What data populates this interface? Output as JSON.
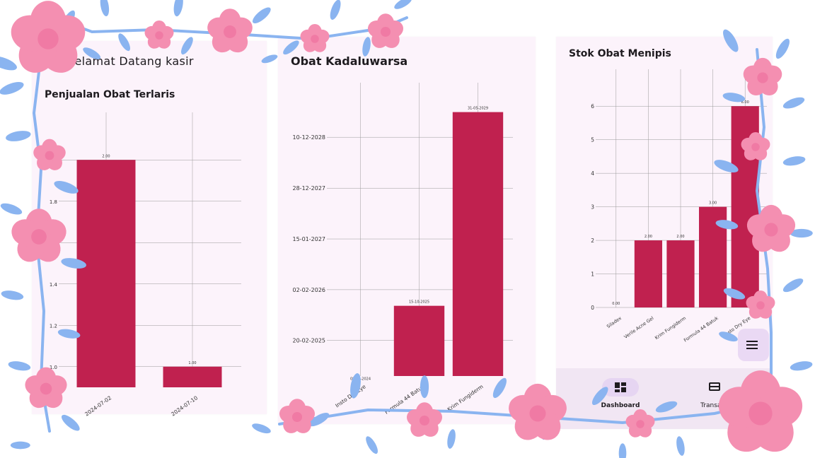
{
  "welcome_text": "Selamat Datang kasir",
  "charts_text": {
    "sales": {
      "title": "Penjualan Obat Terlaris",
      "y_ticks": [
        "1.0",
        "1.2",
        "1.4",
        "1.6",
        "1.8",
        "2.0"
      ],
      "categories": [
        "2024-07-02",
        "2024-07-10"
      ],
      "data_labels": [
        "2.00",
        "1.00"
      ]
    },
    "expiry": {
      "title": "Obat Kadaluwarsa",
      "y_ticks": [
        "20-02-2025",
        "02-02-2026",
        "15-01-2027",
        "28-12-2027",
        "10-12-2028"
      ],
      "categories": [
        "Insto Dry Eye",
        "Formula 44 Batuk",
        "Krim Fungiderm"
      ],
      "data_labels": [
        "08-05-2024",
        "15-10-2025",
        "31-05-2029"
      ]
    },
    "stock": {
      "title": "Stok Obat Menipis",
      "y_ticks": [
        "0",
        "1",
        "2",
        "3",
        "4",
        "5",
        "6"
      ],
      "categories": [
        "Siladex",
        "Verile Acne Gel",
        "Krim Fungiderm",
        "Formula 44 Batuk",
        "Insto Dry Eye"
      ],
      "data_labels": [
        "0.00",
        "2.00",
        "2.00",
        "3.00",
        "6.00"
      ]
    }
  },
  "chart_data": [
    {
      "type": "bar",
      "title": "Penjualan Obat Terlaris",
      "categories": [
        "2024-07-02",
        "2024-07-10"
      ],
      "values": [
        2,
        1
      ],
      "ylim": [
        0.9,
        2.1
      ],
      "color": "#c0214f",
      "grid": true
    },
    {
      "type": "bar",
      "title": "Obat Kadaluwarsa",
      "categories": [
        "Insto Dry Eye",
        "Formula 44 Batuk",
        "Krim Fungiderm"
      ],
      "values": [
        "2024-05-08",
        "2025-10-15",
        "2029-05-31"
      ],
      "y_axis": "date",
      "color": "#c0214f",
      "grid": true
    },
    {
      "type": "bar",
      "title": "Stok Obat Menipis",
      "categories": [
        "Siladex",
        "Verile Acne Gel",
        "Krim Fungiderm",
        "Formula 44 Batuk",
        "Insto Dry Eye"
      ],
      "values": [
        0,
        2,
        2,
        3,
        6
      ],
      "ylim": [
        0,
        6.3
      ],
      "color": "#c0214f",
      "grid": true
    }
  ],
  "nav": {
    "dashboard_label": "Dashboard",
    "dashboard_icon": "dashboard-icon",
    "transaksi_label": "Transaksi",
    "transaksi_icon": "credit-card-icon"
  },
  "fab_icon": "menu-icon",
  "colors": {
    "bar": "#c0214f",
    "panel": "#fcf3fb",
    "flower": "#f48fb1",
    "leaf": "#8ab4f0",
    "nav_bg": "#f1e6f3",
    "nav_pill": "#e6d5f2"
  }
}
